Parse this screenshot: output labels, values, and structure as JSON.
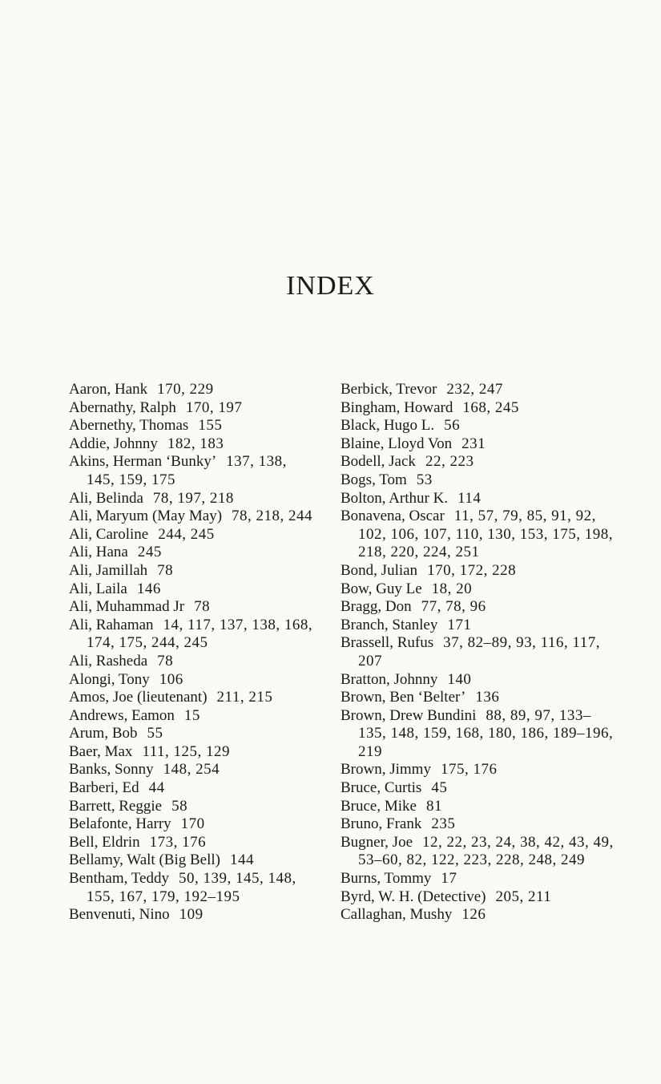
{
  "title": "INDEX",
  "left_column": [
    {
      "name": "Aaron, Hank",
      "pages": "170, 229"
    },
    {
      "name": "Abernathy, Ralph",
      "pages": "170, 197"
    },
    {
      "name": "Abernethy, Thomas",
      "pages": "155"
    },
    {
      "name": "Addie, Johnny",
      "pages": "182, 183"
    },
    {
      "name": "Akins, Herman ‘Bunky’",
      "pages": "137, 138, 145, 159, 175"
    },
    {
      "name": "Ali, Belinda",
      "pages": "78, 197, 218"
    },
    {
      "name": "Ali, Maryum (May May)",
      "pages": "78, 218, 244"
    },
    {
      "name": "Ali, Caroline",
      "pages": "244, 245"
    },
    {
      "name": "Ali, Hana",
      "pages": "245"
    },
    {
      "name": "Ali, Jamillah",
      "pages": "78"
    },
    {
      "name": "Ali, Laila",
      "pages": "146"
    },
    {
      "name": "Ali, Muhammad Jr",
      "pages": "78"
    },
    {
      "name": "Ali, Rahaman",
      "pages": "14, 117, 137, 138, 168, 174, 175, 244, 245"
    },
    {
      "name": "Ali, Rasheda",
      "pages": "78"
    },
    {
      "name": "Alongi, Tony",
      "pages": "106"
    },
    {
      "name": "Amos, Joe (lieutenant)",
      "pages": "211, 215"
    },
    {
      "name": "Andrews, Eamon",
      "pages": "15"
    },
    {
      "name": "Arum, Bob",
      "pages": "55"
    },
    {
      "name": "Baer, Max",
      "pages": "111, 125, 129"
    },
    {
      "name": "Banks, Sonny",
      "pages": "148, 254"
    },
    {
      "name": "Barberi, Ed",
      "pages": "44"
    },
    {
      "name": "Barrett, Reggie",
      "pages": "58"
    },
    {
      "name": "Belafonte, Harry",
      "pages": "170"
    },
    {
      "name": "Bell, Eldrin",
      "pages": "173, 176"
    },
    {
      "name": "Bellamy, Walt (Big Bell)",
      "pages": "144"
    },
    {
      "name": "Bentham, Teddy",
      "pages": "50, 139, 145, 148, 155, 167, 179, 192–195"
    },
    {
      "name": "Benvenuti, Nino",
      "pages": "109"
    }
  ],
  "right_column": [
    {
      "name": "Berbick, Trevor",
      "pages": "232, 247"
    },
    {
      "name": "Bingham, Howard",
      "pages": "168, 245"
    },
    {
      "name": "Black, Hugo L.",
      "pages": "56"
    },
    {
      "name": "Blaine, Lloyd Von",
      "pages": "231"
    },
    {
      "name": "Bodell, Jack",
      "pages": "22, 223"
    },
    {
      "name": "Bogs, Tom",
      "pages": "53"
    },
    {
      "name": "Bolton, Arthur K.",
      "pages": "114"
    },
    {
      "name": "Bonavena, Oscar",
      "pages": "11, 57, 79, 85, 91, 92, 102, 106, 107, 110, 130, 153, 175, 198, 218, 220, 224, 251"
    },
    {
      "name": "Bond, Julian",
      "pages": "170, 172, 228"
    },
    {
      "name": "Bow, Guy Le",
      "pages": "18, 20"
    },
    {
      "name": "Bragg, Don",
      "pages": "77, 78, 96"
    },
    {
      "name": "Branch, Stanley",
      "pages": "171"
    },
    {
      "name": "Brassell, Rufus",
      "pages": "37, 82–89, 93, 116, 117, 207"
    },
    {
      "name": "Bratton, Johnny",
      "pages": "140"
    },
    {
      "name": "Brown, Ben ‘Belter’",
      "pages": "136"
    },
    {
      "name": "Brown, Drew Bundini",
      "pages": "88, 89, 97, 133–135, 148, 159, 168, 180, 186, 189–196, 219"
    },
    {
      "name": "Brown, Jimmy",
      "pages": "175, 176"
    },
    {
      "name": "Bruce, Curtis",
      "pages": "45"
    },
    {
      "name": "Bruce, Mike",
      "pages": "81"
    },
    {
      "name": "Bruno, Frank",
      "pages": "235"
    },
    {
      "name": "Bugner, Joe",
      "pages": "12, 22, 23, 24, 38, 42, 43, 49, 53–60, 82, 122, 223, 228, 248, 249"
    },
    {
      "name": "Burns, Tommy",
      "pages": "17"
    },
    {
      "name": "Byrd, W. H. (Detective)",
      "pages": "205, 211"
    },
    {
      "name": "Callaghan, Mushy",
      "pages": "126"
    }
  ]
}
